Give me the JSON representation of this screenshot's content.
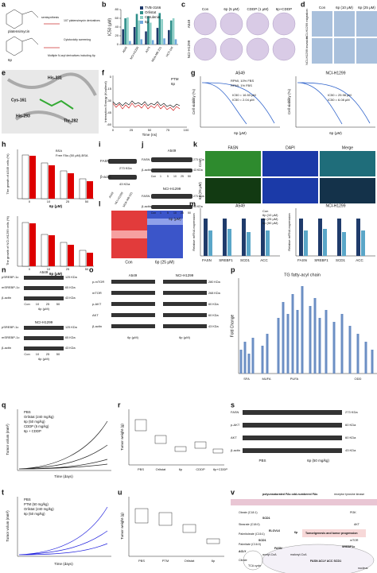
{
  "letters": [
    "a",
    "b",
    "c",
    "d",
    "e",
    "f",
    "g",
    "h",
    "i",
    "j",
    "k",
    "l",
    "m",
    "n",
    "o",
    "p",
    "q",
    "r",
    "s",
    "t",
    "u",
    "v"
  ],
  "a": {
    "labels": [
      "platensimycin",
      "6p",
      "semisynthesis",
      "107 platensimycin derivatives",
      "Cytotoxicity screening",
      "Multiple N-aryl derivatives including 6p"
    ]
  },
  "b": {
    "type": "bar",
    "ylabel": "IC50 (μM)",
    "categories": [
      "A549",
      "NCI-H1299",
      "A375",
      "MDA-MB 231",
      "HCT-116"
    ],
    "series": [
      {
        "name": "TVB-3166",
        "color": "#1f3b6b",
        "values": [
          35,
          40,
          30,
          38,
          33
        ]
      },
      {
        "name": "Orlistat",
        "color": "#2f8f8a",
        "values": [
          60,
          70,
          65,
          72,
          55
        ]
      },
      {
        "name": "Cerulenin",
        "color": "#8fd0c8",
        "values": [
          62,
          55,
          50,
          58,
          60
        ]
      },
      {
        "name": "6p",
        "color": "#6fa8dc",
        "values": [
          8,
          12,
          10,
          14,
          12
        ]
      }
    ],
    "ylim": [
      0,
      80
    ],
    "yticks": [
      0,
      20,
      40,
      60,
      80
    ]
  },
  "c": {
    "columns": [
      "Con",
      "6p (5 μM)",
      "CDDP (1 μM)",
      "6p+CDDP"
    ],
    "rows": [
      "A549",
      "NCI-H1299"
    ]
  },
  "d": {
    "columns": [
      "Con",
      "6p (10 μM)",
      "6p (25 μM)"
    ],
    "rows": [
      "NCI-H1299 migration",
      "NCI-H1299 invasion"
    ]
  },
  "e": {
    "residues": [
      "His-331",
      "Cys-161",
      "His-293",
      "Thr-282"
    ]
  },
  "f": {
    "ylabel": "Interaction Energy (Kcal/mol)",
    "xlabel": "Time (ns)",
    "legend": [
      "PTM",
      "6p"
    ],
    "xticks": [
      "0",
      "25",
      "50",
      "75",
      "100"
    ],
    "yticks": [
      "0",
      "-15",
      "-30",
      "-45",
      "-60"
    ]
  },
  "g": {
    "titles": [
      "A549",
      "NCI-H1299"
    ],
    "legend": [
      "RPMI, 10% FBS",
      "RPMI, 1% FBS"
    ],
    "ic50": [
      "IC50 = 16.53 μM",
      "IC50 = 2.04 μM",
      "IC50 = 25.98 μM",
      "IC50 = 6.08 μM"
    ],
    "ylabel": "Cell viability (%)",
    "xlabel": "6p (μM)"
  },
  "h": {
    "ylabels": [
      "The growth of A549 cells (%)",
      "The growth of NCI-H1299 cells (%)"
    ],
    "legend": [
      "BSA",
      "Free FAs (50 μM)-BSA"
    ],
    "xticks": [
      "0",
      "10",
      "25",
      "50"
    ],
    "xlabel": "6p (μM)"
  },
  "i": {
    "bands": [
      "FASN",
      "β-actin"
    ],
    "sizes": [
      "273 KDa",
      "43 KDa"
    ],
    "columns": [
      "A549",
      "NCI-H1299",
      "MDA-MB-231"
    ]
  },
  "j": {
    "titles": [
      "A549",
      "NCI-H1299"
    ],
    "bands": [
      "FASN",
      "β-actin"
    ],
    "sizes": [
      "273 KDa",
      "43 KDa"
    ],
    "columns": [
      "Con",
      "1",
      "5",
      "10",
      "25",
      "50"
    ],
    "xlabel": "6p (μM)"
  },
  "k": {
    "columns": [
      "FASN",
      "DAPI",
      "Merge"
    ],
    "rows": [
      "Con",
      "6p (25 μM)"
    ]
  },
  "l": {
    "groups": [
      "Con",
      "6p (25 μM)"
    ]
  },
  "m": {
    "titles": [
      "A549",
      "NCI-H1299"
    ],
    "ylabel": "Relative mRNA expression",
    "genes": [
      "FASN",
      "SREBF1",
      "SCD1",
      "ACC"
    ],
    "legend": [
      "Con",
      "6p (10 μM)",
      "6p (25 μM)",
      "6p (50 μM)"
    ]
  },
  "n": {
    "titles": [
      "A549",
      "NCI-H1299"
    ],
    "bands": [
      "pSREBP-1c",
      "mSREBP-1c",
      "β-actin"
    ],
    "sizes": [
      "125 KDa",
      "65 KDa",
      "43 KDa"
    ],
    "columns": [
      "Con",
      "10",
      "25",
      "50"
    ],
    "xlabel": "6p (μM)"
  },
  "o": {
    "titles": [
      "A549",
      "NCI-H1299"
    ],
    "bands": [
      "p-mTOR",
      "mTOR",
      "p-AKT",
      "AKT",
      "β-actin"
    ],
    "sizes": [
      "280 KDa",
      "268 KDa",
      "60 KDa",
      "60 KDa",
      "43 KDa"
    ],
    "xlabel": "6p (μM)"
  },
  "p": {
    "title": "TG fatty-acyl chain",
    "ylabel": "Fold Change",
    "groups": [
      "SFA",
      "MUFA",
      "PUFA",
      "ODD"
    ]
  },
  "q": {
    "ylabel": "Tumor volum (mm³)",
    "xlabel": "Time (days)",
    "legend": [
      "PBS",
      "Orlistat (240 mg/kg)",
      "6p (50 mg/kg)",
      "CDDP (5 mg/kg)",
      "6p + CDDP"
    ]
  },
  "r": {
    "ylabel": "Tumor weight (g)",
    "categories": [
      "PBS",
      "Orlistat",
      "6p",
      "CDDP",
      "6p+CDDP"
    ]
  },
  "s": {
    "bands": [
      "FASN",
      "p-AKT",
      "AKT",
      "β-actin"
    ],
    "sizes": [
      "273 KDa",
      "60 KDa",
      "60 KDa",
      "43 KDa"
    ],
    "groups": [
      "PBS",
      "6p (50 mg/kg)"
    ]
  },
  "t": {
    "ylabel": "Tumor volum (mm³)",
    "xlabel": "Time (days)",
    "legend": [
      "PBS",
      "PTM (50 mg/kg)",
      "Orlistat (240 mg/kg)",
      "6p (50 mg/kg)"
    ]
  },
  "u": {
    "ylabel": "Tumor weight (g)",
    "categories": [
      "PBS",
      "PTM",
      "Orlistat",
      "6p"
    ]
  },
  "v": {
    "labels": [
      "polyunsaturated FAs odd-numbered FAs",
      "receptor tyrosine kinase",
      "Oleate (C18:1)",
      "Stearate (C18:0)",
      "Palmitoleate (C16:1)",
      "Palmitate (C16:0)",
      "SCD1",
      "ELOVL6",
      "SCD1",
      "6p",
      "FASN",
      "ACLY",
      "acetyl-CoA",
      "malonyl-CoA",
      "Tumorigenesis and tumor progression",
      "PI3K",
      "AKT",
      "mTOR",
      "SREBP1c",
      "Citrate",
      "TCA cycle",
      "nucleus",
      "FASN ACLY ACC SCD1"
    ]
  }
}
